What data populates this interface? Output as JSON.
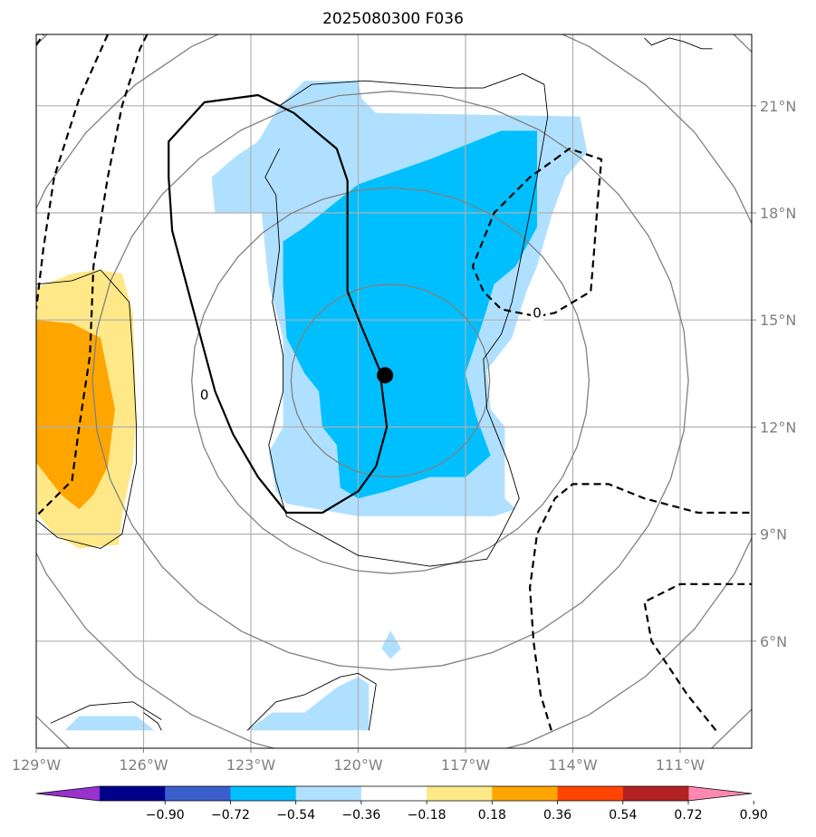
{
  "title": "2025080300 F036",
  "chart_data": {
    "type": "map-contour",
    "title": "2025080300 F036",
    "x_ticks": [
      {
        "value": -129,
        "label": "129°W"
      },
      {
        "value": -126,
        "label": "126°W"
      },
      {
        "value": -123,
        "label": "123°W"
      },
      {
        "value": -120,
        "label": "120°W"
      },
      {
        "value": -117,
        "label": "117°W"
      },
      {
        "value": -114,
        "label": "114°W"
      },
      {
        "value": -111,
        "label": "111°W"
      }
    ],
    "y_ticks": [
      {
        "value": 6,
        "label": "6°N"
      },
      {
        "value": 9,
        "label": "9°N"
      },
      {
        "value": 12,
        "label": "12°N"
      },
      {
        "value": 15,
        "label": "15°N"
      },
      {
        "value": 18,
        "label": "18°N"
      },
      {
        "value": 21,
        "label": "21°N"
      }
    ],
    "xlim": [
      -129.0,
      -109.0
    ],
    "ylim": [
      3.0,
      23.0
    ],
    "grid": true,
    "center_marker": {
      "lon": -119.25,
      "lat": 13.45
    },
    "range_rings_center": {
      "lon": -119.1,
      "lat": 13.3
    },
    "colorbar": {
      "levels": [
        "−0.90",
        "−0.72",
        "−0.54",
        "−0.36",
        "−0.18",
        "0.18",
        "0.36",
        "0.54",
        "0.72",
        "0.90"
      ],
      "colors": [
        "#9932cc",
        "#00008b",
        "#3a5fcd",
        "#00bfff",
        "#b0e0ff",
        "#ffffff",
        "#ffe888",
        "#ffa500",
        "#ff4500",
        "#b22222",
        "#ff88b0"
      ],
      "extend": "both"
    },
    "filled_regions": [
      {
        "level": "-0.36..-0.18",
        "color": "#b0e0ff",
        "points": [
          [
            -120.0,
            21.7
          ],
          [
            -119.9,
            21.2
          ],
          [
            -119.5,
            20.8
          ],
          [
            -116.5,
            20.75
          ],
          [
            -113.8,
            20.7
          ],
          [
            -113.6,
            19.7
          ],
          [
            -114.2,
            19.0
          ],
          [
            -114.6,
            17.9
          ],
          [
            -115.0,
            16.5
          ],
          [
            -115.3,
            15.8
          ],
          [
            -115.7,
            14.5
          ],
          [
            -116.4,
            13.6
          ],
          [
            -116.3,
            12.5
          ],
          [
            -115.9,
            12.0
          ],
          [
            -115.9,
            10.0
          ],
          [
            -115.6,
            9.7
          ],
          [
            -116.2,
            9.5
          ],
          [
            -120.0,
            9.5
          ],
          [
            -122.0,
            9.85
          ],
          [
            -122.3,
            10.2
          ],
          [
            -122.5,
            11.3
          ],
          [
            -122.1,
            12.0
          ],
          [
            -122.1,
            14.5
          ],
          [
            -122.5,
            16.0
          ],
          [
            -122.7,
            18.0
          ],
          [
            -124.0,
            18.0
          ],
          [
            -124.1,
            19.0
          ],
          [
            -123.4,
            19.6
          ],
          [
            -122.8,
            20.0
          ],
          [
            -122.2,
            21.0
          ],
          [
            -121.5,
            21.7
          ]
        ]
      },
      {
        "level": "-0.54..-0.36",
        "color": "#00bfff",
        "points": [
          [
            -115.0,
            20.3
          ],
          [
            -115.0,
            17.6
          ],
          [
            -115.6,
            16.5
          ],
          [
            -116.2,
            16.0
          ],
          [
            -116.5,
            15.0
          ],
          [
            -117.0,
            13.5
          ],
          [
            -116.7,
            12.3
          ],
          [
            -116.3,
            11.2
          ],
          [
            -117.0,
            10.6
          ],
          [
            -118.0,
            10.6
          ],
          [
            -118.6,
            10.4
          ],
          [
            -119.2,
            10.2
          ],
          [
            -120.0,
            10.0
          ],
          [
            -120.5,
            10.3
          ],
          [
            -120.6,
            11.5
          ],
          [
            -121.0,
            12.0
          ],
          [
            -121.1,
            13.0
          ],
          [
            -121.5,
            13.5
          ],
          [
            -122.0,
            14.5
          ],
          [
            -122.1,
            16.0
          ],
          [
            -122.1,
            17.2
          ],
          [
            -121.5,
            17.6
          ],
          [
            -121.0,
            18.0
          ],
          [
            -120.0,
            18.8
          ],
          [
            -118.0,
            19.5
          ],
          [
            -116.0,
            20.3
          ]
        ]
      },
      {
        "level": "-0.36..-0.18",
        "color": "#b0e0ff",
        "points": [
          [
            -119.1,
            6.3
          ],
          [
            -118.8,
            5.8
          ],
          [
            -119.1,
            5.5
          ],
          [
            -119.35,
            5.8
          ]
        ]
      },
      {
        "level": "-0.36..-0.18",
        "color": "#b0e0ff",
        "points": [
          [
            -123.1,
            3.5
          ],
          [
            -122.4,
            4.0
          ],
          [
            -121.5,
            4.0
          ],
          [
            -120.6,
            4.7
          ],
          [
            -120.0,
            5.0
          ],
          [
            -119.7,
            4.8
          ],
          [
            -119.7,
            3.5
          ]
        ]
      },
      {
        "level": "-0.36..-0.18",
        "color": "#b0e0ff",
        "points": [
          [
            -128.2,
            3.5
          ],
          [
            -127.8,
            3.9
          ],
          [
            -126.2,
            3.9
          ],
          [
            -125.7,
            3.5
          ]
        ]
      },
      {
        "level": "0.18..0.36",
        "color": "#ffe888",
        "points": [
          [
            -129.0,
            15.9
          ],
          [
            -128.0,
            16.3
          ],
          [
            -127.3,
            16.4
          ],
          [
            -126.6,
            16.3
          ],
          [
            -126.3,
            15.2
          ],
          [
            -126.2,
            12.3
          ],
          [
            -126.3,
            11.0
          ],
          [
            -126.6,
            9.5
          ],
          [
            -126.7,
            8.7
          ],
          [
            -127.8,
            8.6
          ],
          [
            -128.5,
            9.0
          ],
          [
            -129.0,
            9.6
          ]
        ]
      },
      {
        "level": "0.36..0.54",
        "color": "#ffa500",
        "points": [
          [
            -129.0,
            15.0
          ],
          [
            -128.0,
            14.9
          ],
          [
            -127.2,
            14.5
          ],
          [
            -126.8,
            12.5
          ],
          [
            -127.0,
            10.9
          ],
          [
            -127.4,
            10.1
          ],
          [
            -127.8,
            9.7
          ],
          [
            -128.3,
            10.1
          ],
          [
            -129.0,
            11.0
          ]
        ]
      }
    ],
    "solid_contours": [
      {
        "label": "0",
        "points": [
          [
            -122.8,
            21.3
          ],
          [
            -121.8,
            20.8
          ],
          [
            -120.6,
            19.8
          ],
          [
            -120.3,
            18.9
          ],
          [
            -120.3,
            17.0
          ],
          [
            -120.3,
            15.8
          ],
          [
            -119.9,
            14.8
          ],
          [
            -119.4,
            13.6
          ],
          [
            -119.2,
            12.0
          ],
          [
            -119.5,
            10.9
          ],
          [
            -120.0,
            10.2
          ],
          [
            -121.0,
            9.6
          ],
          [
            -122.0,
            9.6
          ],
          [
            -122.8,
            10.6
          ],
          [
            -123.5,
            11.8
          ],
          [
            -124.0,
            13.0
          ],
          [
            -124.4,
            14.5
          ],
          [
            -124.8,
            16.0
          ],
          [
            -125.2,
            17.5
          ],
          [
            -125.3,
            19.0
          ],
          [
            -125.3,
            20.0
          ],
          [
            -124.3,
            21.1
          ]
        ],
        "closed": true
      }
    ],
    "dashed_contours": [
      {
        "label": "",
        "points": [
          [
            -129.0,
            22.7
          ],
          [
            -128.8,
            23.0
          ]
        ],
        "closed": false
      },
      {
        "label": "",
        "points": [
          [
            -127.0,
            23.0
          ],
          [
            -127.8,
            21.2
          ],
          [
            -128.5,
            19.0
          ],
          [
            -128.8,
            17.0
          ],
          [
            -129.0,
            15.3
          ]
        ],
        "closed": false
      },
      {
        "label": "",
        "points": [
          [
            -125.9,
            23.0
          ],
          [
            -126.1,
            22.6
          ],
          [
            -126.6,
            21.0
          ],
          [
            -127.0,
            19.0
          ],
          [
            -127.4,
            16.5
          ],
          [
            -127.5,
            14.0
          ],
          [
            -127.8,
            12.0
          ],
          [
            -128.0,
            10.5
          ],
          [
            -129.0,
            9.5
          ]
        ],
        "closed": false
      },
      {
        "label": "0",
        "points": [
          [
            -114.5,
            19.5
          ],
          [
            -114.1,
            19.8
          ],
          [
            -113.2,
            19.5
          ],
          [
            -113.3,
            18.4
          ],
          [
            -113.4,
            17.0
          ],
          [
            -113.5,
            15.8
          ],
          [
            -114.5,
            15.2
          ],
          [
            -115.0,
            15.1
          ],
          [
            -116.0,
            15.3
          ],
          [
            -116.5,
            15.8
          ],
          [
            -116.8,
            16.5
          ],
          [
            -116.2,
            18.0
          ],
          [
            -115.2,
            19.0
          ]
        ],
        "closed": true
      },
      {
        "label": "",
        "points": [
          [
            -114.6,
            3.5
          ],
          [
            -114.9,
            4.5
          ],
          [
            -115.1,
            6.0
          ],
          [
            -115.2,
            7.5
          ],
          [
            -115.0,
            9.0
          ],
          [
            -114.5,
            10.0
          ],
          [
            -114.0,
            10.4
          ],
          [
            -113.0,
            10.4
          ],
          [
            -112.0,
            10.0
          ],
          [
            -110.5,
            9.6
          ],
          [
            -109.0,
            9.6
          ]
        ],
        "closed": false
      },
      {
        "label": "",
        "points": [
          [
            -110.0,
            3.5
          ],
          [
            -110.8,
            4.5
          ],
          [
            -111.8,
            6.0
          ],
          [
            -112.0,
            7.1
          ],
          [
            -111.0,
            7.6
          ],
          [
            -109.0,
            7.6
          ]
        ],
        "closed": false
      }
    ],
    "thin_black_lines": [
      {
        "points": [
          [
            -122.2,
            21.0
          ],
          [
            -121.3,
            21.6
          ],
          [
            -119.8,
            21.7
          ],
          [
            -117.3,
            21.5
          ],
          [
            -116.5,
            21.5
          ],
          [
            -115.4,
            21.9
          ],
          [
            -114.8,
            21.6
          ],
          [
            -114.7,
            20.7
          ],
          [
            -115.0,
            19.0
          ],
          [
            -115.4,
            17.0
          ],
          [
            -115.7,
            15.5
          ],
          [
            -116.0,
            14.6
          ],
          [
            -116.5,
            13.9
          ],
          [
            -116.4,
            12.5
          ],
          [
            -115.8,
            11.0
          ],
          [
            -115.5,
            10.0
          ],
          [
            -116.0,
            9.0
          ],
          [
            -116.4,
            8.3
          ],
          [
            -118.0,
            8.1
          ],
          [
            -120.0,
            8.4
          ],
          [
            -122.0,
            9.5
          ],
          [
            -122.3,
            10.5
          ],
          [
            -122.5,
            11.5
          ],
          [
            -122.1,
            13.0
          ],
          [
            -122.1,
            14.0
          ],
          [
            -122.4,
            15.5
          ],
          [
            -122.2,
            17.0
          ],
          [
            -122.3,
            18.5
          ],
          [
            -122.6,
            19.0
          ],
          [
            -122.2,
            19.8
          ]
        ]
      },
      {
        "points": [
          [
            -129.0,
            16.0
          ],
          [
            -128.0,
            16.1
          ],
          [
            -127.2,
            16.4
          ],
          [
            -126.4,
            15.5
          ],
          [
            -126.3,
            14.0
          ],
          [
            -126.2,
            12.0
          ],
          [
            -126.2,
            11.0
          ],
          [
            -126.4,
            10.0
          ],
          [
            -126.6,
            9.0
          ],
          [
            -127.2,
            8.6
          ],
          [
            -128.4,
            8.9
          ],
          [
            -129.0,
            9.4
          ]
        ]
      },
      {
        "points": [
          [
            -128.6,
            3.7
          ],
          [
            -127.5,
            4.2
          ],
          [
            -126.3,
            4.3
          ],
          [
            -125.5,
            3.8
          ]
        ]
      },
      {
        "points": [
          [
            -126.0,
            4.0
          ],
          [
            -125.6,
            3.7
          ],
          [
            -125.5,
            3.5
          ]
        ]
      },
      {
        "points": [
          [
            -123.1,
            3.5
          ],
          [
            -122.3,
            4.3
          ],
          [
            -121.5,
            4.5
          ],
          [
            -120.5,
            5.0
          ],
          [
            -120.0,
            5.1
          ],
          [
            -119.5,
            4.8
          ],
          [
            -119.7,
            3.5
          ]
        ]
      },
      {
        "points": [
          [
            -110.1,
            22.6
          ],
          [
            -110.4,
            22.6
          ],
          [
            -110.9,
            22.8
          ],
          [
            -111.3,
            22.9
          ],
          [
            -111.8,
            22.7
          ],
          [
            -112.0,
            22.9
          ]
        ]
      }
    ],
    "contour_labels": [
      {
        "text": "0",
        "lon": -124.3,
        "lat": 12.9
      },
      {
        "text": "0",
        "lon": -115.0,
        "lat": 15.2
      }
    ],
    "circles_km": [
      300,
      600,
      900,
      1200,
      1500
    ],
    "circle_color": "#808080"
  }
}
